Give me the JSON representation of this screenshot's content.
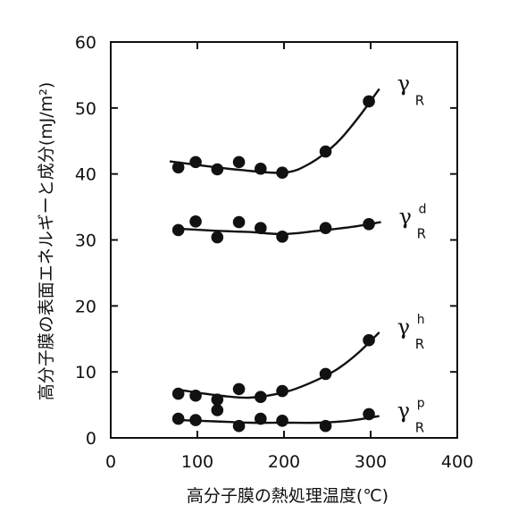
{
  "chart_data": {
    "type": "scatter",
    "xlabel": "高分子膜の熱処理温度(℃)",
    "ylabel": "高分子膜の表面エネルギーと成分(mJ/m²)",
    "xlim": [
      0,
      400
    ],
    "ylim": [
      0,
      60
    ],
    "xticks": [
      0,
      100,
      200,
      300,
      400
    ],
    "yticks": [
      0,
      10,
      20,
      30,
      40,
      50,
      60
    ],
    "grid": false,
    "legend": "none",
    "series": [
      {
        "label": "γ",
        "sub": "R",
        "sup": "",
        "points": [
          [
            78,
            41
          ],
          [
            98,
            41.8
          ],
          [
            123,
            40.7
          ],
          [
            148,
            41.8
          ],
          [
            173,
            40.8
          ],
          [
            198,
            40.2
          ],
          [
            248,
            43.4
          ],
          [
            298,
            51
          ]
        ],
        "fit": [
          [
            68,
            41.9
          ],
          [
            110,
            41.2
          ],
          [
            150,
            40.6
          ],
          [
            200,
            40.2
          ],
          [
            230,
            41.6
          ],
          [
            260,
            44.6
          ],
          [
            285,
            48.4
          ],
          [
            310,
            52.9
          ]
        ]
      },
      {
        "label": "γ",
        "sub": "R",
        "sup": "d",
        "points": [
          [
            78,
            31.5
          ],
          [
            98,
            32.8
          ],
          [
            123,
            30.4
          ],
          [
            148,
            32.7
          ],
          [
            173,
            31.8
          ],
          [
            198,
            30.5
          ],
          [
            248,
            31.8
          ],
          [
            298,
            32.4
          ]
        ],
        "fit": [
          [
            78,
            31.7
          ],
          [
            120,
            31.4
          ],
          [
            160,
            31.2
          ],
          [
            200,
            30.9
          ],
          [
            240,
            31.4
          ],
          [
            280,
            32
          ],
          [
            312,
            32.7
          ]
        ]
      },
      {
        "label": "γ",
        "sub": "R",
        "sup": "h",
        "points": [
          [
            78,
            6.7
          ],
          [
            98,
            6.4
          ],
          [
            123,
            5.8
          ],
          [
            123,
            4.2
          ],
          [
            148,
            7.4
          ],
          [
            173,
            6.2
          ],
          [
            198,
            7.1
          ],
          [
            248,
            9.7
          ],
          [
            298,
            14.8
          ]
        ],
        "fit": [
          [
            78,
            7.3
          ],
          [
            120,
            6.5
          ],
          [
            160,
            6.1
          ],
          [
            200,
            6.9
          ],
          [
            230,
            8.3
          ],
          [
            260,
            10.3
          ],
          [
            285,
            12.8
          ],
          [
            310,
            16
          ]
        ]
      },
      {
        "label": "γ",
        "sub": "R",
        "sup": "p",
        "points": [
          [
            78,
            2.9
          ],
          [
            98,
            2.7
          ],
          [
            148,
            1.8
          ],
          [
            173,
            2.9
          ],
          [
            198,
            2.6
          ],
          [
            248,
            1.8
          ],
          [
            298,
            3.6
          ]
        ],
        "fit": [
          [
            78,
            2.7
          ],
          [
            120,
            2.5
          ],
          [
            160,
            2.3
          ],
          [
            200,
            2.3
          ],
          [
            240,
            2.3
          ],
          [
            275,
            2.6
          ],
          [
            310,
            3.3
          ]
        ]
      }
    ]
  }
}
